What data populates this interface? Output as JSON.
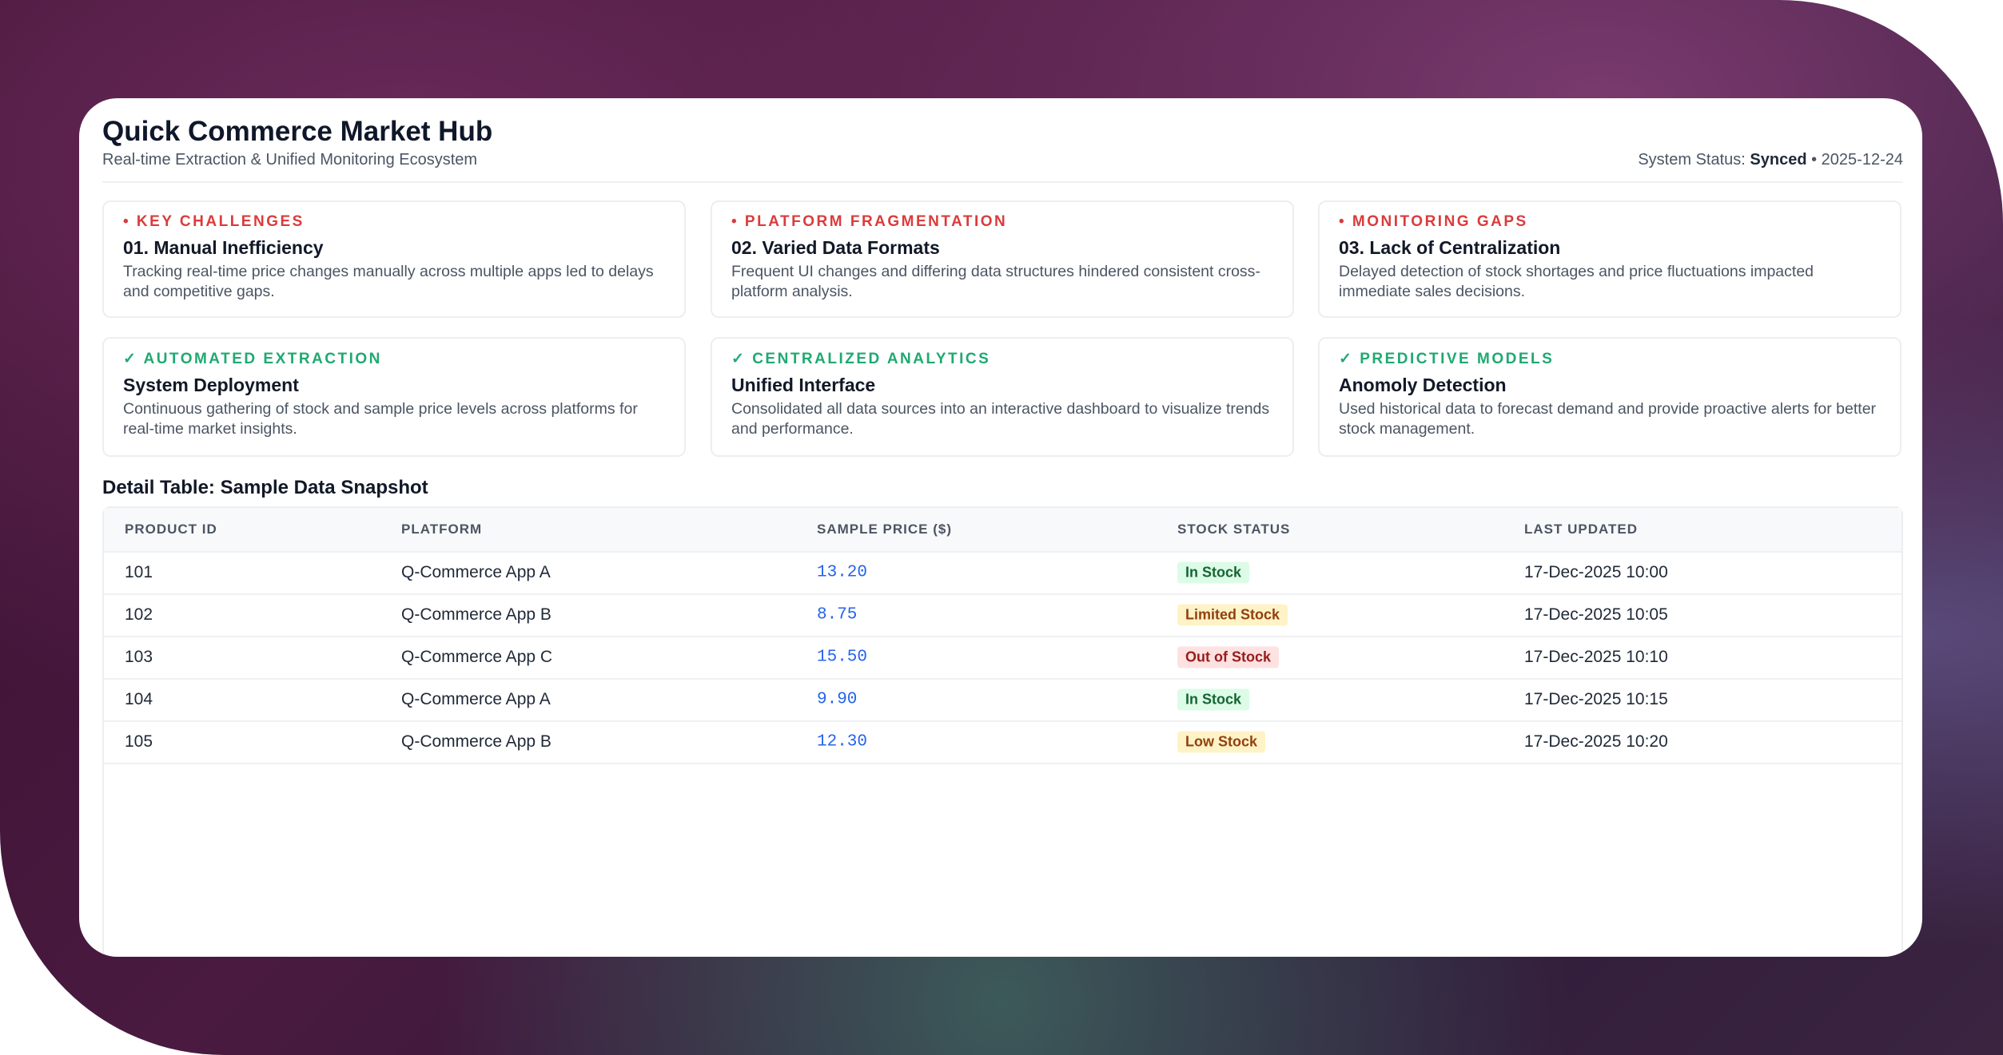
{
  "header": {
    "title": "Quick Commerce Market Hub",
    "subtitle": "Real-time Extraction & Unified Monitoring Ecosystem",
    "status_label": "System Status:",
    "status_value": "Synced",
    "status_date": "• 2025-12-24"
  },
  "challenges": [
    {
      "label": "• KEY CHALLENGES",
      "title": "01. Manual Inefficiency",
      "desc": "Tracking real-time price changes manually across multiple apps led to delays and competitive gaps."
    },
    {
      "label": "• PLATFORM FRAGMENTATION",
      "title": "02. Varied Data Formats",
      "desc": "Frequent UI changes and differing data structures hindered consistent cross-platform analysis."
    },
    {
      "label": "• MONITORING GAPS",
      "title": "03. Lack of Centralization",
      "desc": "Delayed detection of stock shortages and price fluctuations impacted immediate sales decisions."
    }
  ],
  "solutions": [
    {
      "label": "✓ AUTOMATED EXTRACTION",
      "title": "System Deployment",
      "desc": "Continuous gathering of stock and sample price levels across platforms for real-time market insights."
    },
    {
      "label": "✓ CENTRALIZED ANALYTICS",
      "title": "Unified Interface",
      "desc": "Consolidated all data sources into an interactive dashboard to visualize trends and performance."
    },
    {
      "label": "✓ PREDICTIVE MODELS",
      "title": "Anomoly Detection",
      "desc": "Used historical data to forecast demand and provide proactive alerts for better stock management."
    }
  ],
  "table": {
    "title": "Detail Table: Sample Data Snapshot",
    "columns": [
      "PRODUCT ID",
      "PLATFORM",
      "SAMPLE PRICE ($)",
      "STOCK STATUS",
      "LAST UPDATED"
    ],
    "rows": [
      {
        "id": "101",
        "platform": "Q-Commerce App A",
        "price": "13.20",
        "status": "In Stock",
        "updated": "17-Dec-2025 10:00"
      },
      {
        "id": "102",
        "platform": "Q-Commerce App B",
        "price": "8.75",
        "status": "Limited Stock",
        "updated": "17-Dec-2025 10:05"
      },
      {
        "id": "103",
        "platform": "Q-Commerce App C",
        "price": "15.50",
        "status": "Out of Stock",
        "updated": "17-Dec-2025 10:10"
      },
      {
        "id": "104",
        "platform": "Q-Commerce App A",
        "price": "9.90",
        "status": "In Stock",
        "updated": "17-Dec-2025 10:15"
      },
      {
        "id": "105",
        "platform": "Q-Commerce App B",
        "price": "12.30",
        "status": "Low Stock",
        "updated": "17-Dec-2025 10:20"
      }
    ]
  },
  "colors": {
    "challenge": "#dc3b3b",
    "solution": "#1fa971",
    "price": "#2563eb",
    "in_stock_bg": "#dcfce7",
    "in_stock_fg": "#166534",
    "warn_bg": "#fef3c7",
    "warn_fg": "#92400e",
    "out_bg": "#fee2e2",
    "out_fg": "#991b1b"
  }
}
